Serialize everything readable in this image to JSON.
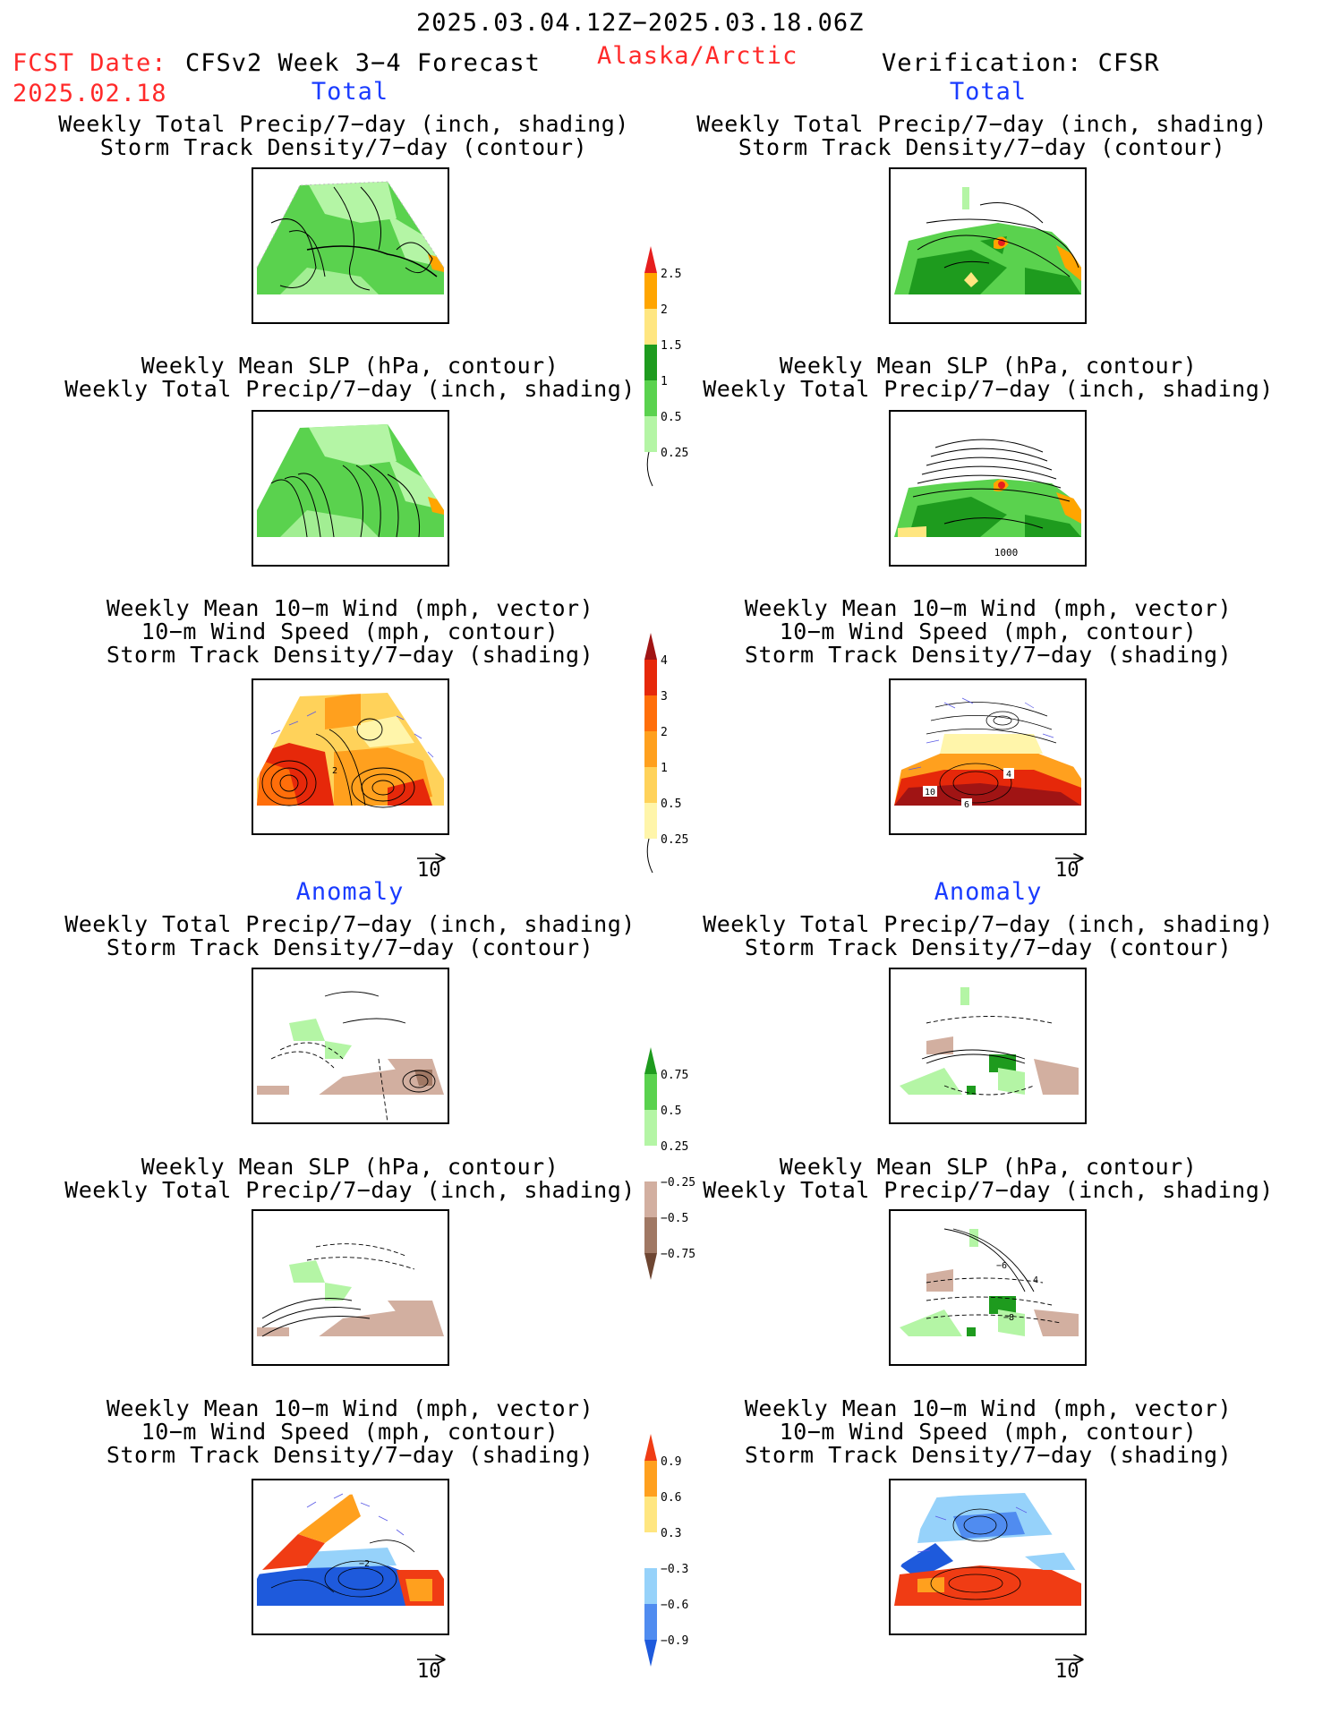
{
  "header": {
    "date_range": "2025.03.04.12Z−2025.03.18.06Z",
    "fcst_label": "FCST Date:",
    "fcst_date": "2025.02.18",
    "model": "CFSv2 Week 3−4 Forecast",
    "region": "Alaska/Arctic",
    "verification": "Verification: CFSR"
  },
  "sections": {
    "total_left": "Total",
    "total_right": "Total",
    "anomaly_left": "Anomaly",
    "anomaly_right": "Anomaly"
  },
  "titles": {
    "precip_storm": [
      "Weekly Total Precip/7−day (inch, shading)",
      "Storm Track Density/7−day (contour)"
    ],
    "slp_precip": [
      "Weekly Mean SLP (hPa, contour)",
      "Weekly Total Precip/7−day (inch, shading)"
    ],
    "wind_storm": [
      "Weekly Mean 10−m Wind (mph, vector)",
      "10−m Wind Speed (mph, contour)",
      "Storm Track Density/7−day (shading)"
    ]
  },
  "vector_scale_label": "10",
  "map_labels": {
    "r_total_slp": "1000",
    "l_total_wind": "2",
    "r_total_wind_a": "10",
    "r_total_wind_b": "4",
    "r_total_wind_c": "6",
    "r_anom_slp_a": "−6",
    "r_anom_slp_b": "4",
    "r_anom_slp_c": "−8",
    "l_anom_wind": "−2"
  },
  "colorbars": {
    "precip_total": {
      "ticks": [
        "0.25",
        "0.5",
        "1",
        "1.5",
        "2",
        "2.5"
      ],
      "colors": [
        "#b4f5a5",
        "#5ad24e",
        "#1e9b1e",
        "#ffe680",
        "#ffa500",
        "#e61e1e"
      ]
    },
    "storm_total": {
      "ticks": [
        "0.25",
        "0.5",
        "1",
        "2",
        "3",
        "4"
      ],
      "colors": [
        "#fff5aa",
        "#ffd25a",
        "#ffa01e",
        "#ff6e0a",
        "#e6280a",
        "#a01414"
      ]
    },
    "precip_anomaly": {
      "ticks": [
        "−0.75",
        "−0.5",
        "−0.25",
        "0.25",
        "0.5",
        "0.75"
      ],
      "colors": [
        "#6e4632",
        "#a07864",
        "#d2afa0",
        "#ffffff",
        "#b4f5a5",
        "#5ad24e",
        "#1e9b1e"
      ]
    },
    "storm_anomaly": {
      "ticks": [
        "−0.9",
        "−0.6",
        "−0.3",
        "0.3",
        "0.6",
        "0.9"
      ],
      "colors": [
        "#1e5adc",
        "#508cf0",
        "#96d2fa",
        "#ffffff",
        "#ffe680",
        "#ffa01e",
        "#f03c14"
      ]
    }
  },
  "colors": {
    "red_text": "#ff2a2a",
    "blue_text": "#1a3cff"
  }
}
